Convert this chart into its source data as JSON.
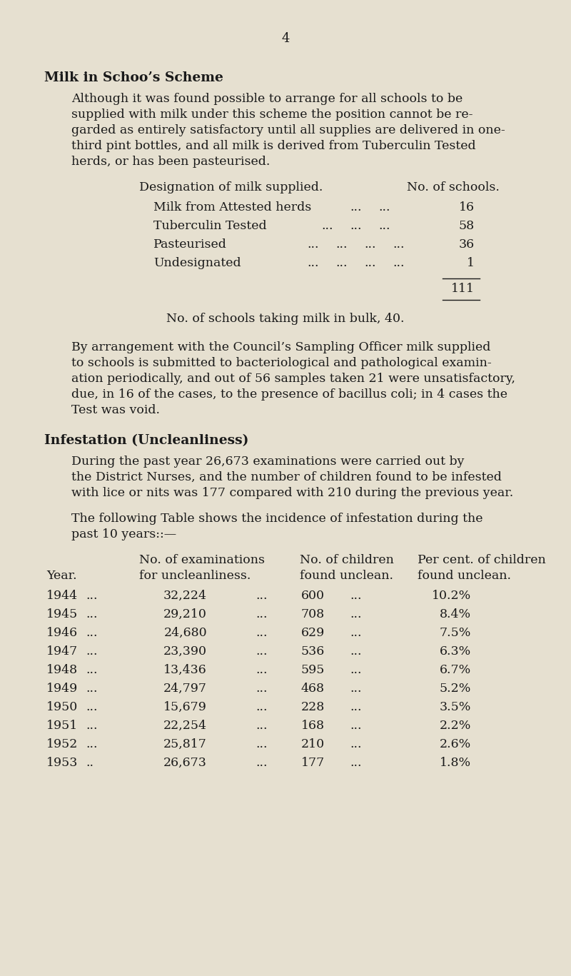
{
  "page_number": "4",
  "background_color": "#e6e0d0",
  "text_color": "#1a1a1a",
  "title": "Milk in Schoo’s Scheme",
  "para1_lines": [
    "Although it was found possible to arrange for all schools to be",
    "supplied with milk under this scheme the position cannot be re­",
    "garded as entirely satisfactory until all supplies are delivered in one-",
    "third pint bottles, and all milk is derived from Tuberculin Tested",
    "herds, or has been pasteurised."
  ],
  "milk_table_header_left": "Designation of milk supplied.",
  "milk_table_header_right": "No. of schools.",
  "milk_designations": [
    "Milk from Attested herds",
    "Tuberculin Tested",
    "Pasteurised",
    "Undesignated"
  ],
  "milk_dots": [
    [
      "...",
      "..."
    ],
    [
      "...",
      "...",
      "..."
    ],
    [
      "...",
      "...",
      "...",
      "..."
    ],
    [
      "...",
      "...",
      "...",
      "..."
    ]
  ],
  "milk_nos": [
    "16",
    "58",
    "36",
    "1"
  ],
  "milk_total": "111",
  "bulk_note": "No. of schools taking milk in bulk, 40.",
  "para2_lines": [
    "By arrangement with the Council’s Sampling Officer milk supplied",
    "to schools is submitted to bacteriological and pathological examin­",
    "ation periodically, and out of 56 samples taken 21 were unsatisfactory,",
    "due, in 16 of the cases, to the presence of bacillus coli; in 4 cases the",
    "Test was void."
  ],
  "infestation_title": "Infestation (Uncleanliness)",
  "para3_lines": [
    "During the past year 26,673 examinations were carried out by",
    "the District Nurses, and the number of children found to be infested",
    "with lice or nits was 177 compared with 210 during the previous year."
  ],
  "para4_lines": [
    "The following Table shows the incidence of infestation during the",
    "past 10 years::—"
  ],
  "table_hdr1": [
    "",
    "No. of examinations",
    "No. of children",
    "Per cent. of children"
  ],
  "table_hdr2": [
    "Year.",
    "for uncleanliness.",
    "found unclean.",
    "found unclean."
  ],
  "table_data": [
    [
      "1944",
      "...",
      "32,224",
      "...",
      "600",
      "...",
      "10.2%"
    ],
    [
      "1945",
      "...",
      "29,210",
      "...",
      "708",
      "...",
      "8.4%"
    ],
    [
      "1946",
      "...",
      "24,680",
      "...",
      "629",
      "...",
      "7.5%"
    ],
    [
      "1947",
      "...",
      "23,390",
      "...",
      "536",
      "...",
      "6.3%"
    ],
    [
      "1948",
      "...",
      "13,436",
      "...",
      "595",
      "...",
      "6.7%"
    ],
    [
      "1949",
      "...",
      "24,797",
      "...",
      "468",
      "...",
      "5.2%"
    ],
    [
      "1950",
      "...",
      "15,679",
      "...",
      "228",
      "...",
      "3.5%"
    ],
    [
      "1951",
      "...",
      "22,254",
      "...",
      "168",
      "...",
      "2.2%"
    ],
    [
      "1952",
      "...",
      "25,817",
      "...",
      "210",
      "...",
      "2.6%"
    ],
    [
      "1953",
      "..",
      "26,673",
      "...",
      "177",
      "...",
      "1.8%"
    ]
  ],
  "fs_body": 12.5,
  "fs_title": 13.5,
  "fs_pagenum": 13
}
